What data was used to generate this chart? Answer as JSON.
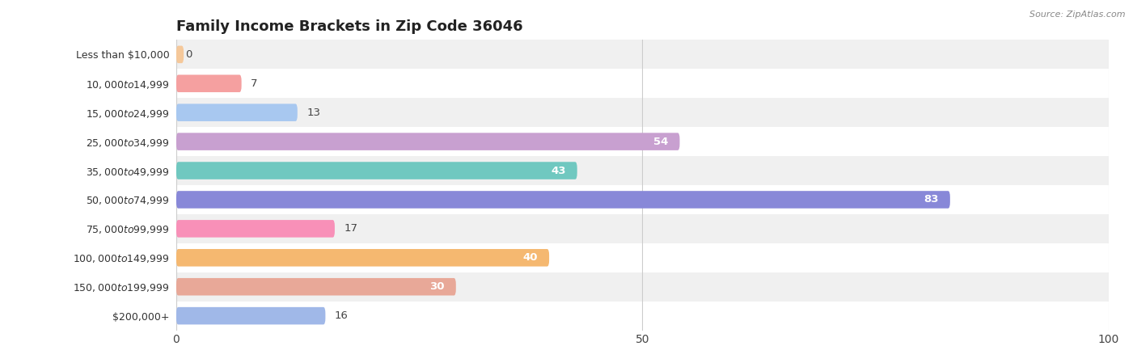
{
  "title": "Family Income Brackets in Zip Code 36046",
  "source": "Source: ZipAtlas.com",
  "categories": [
    "Less than $10,000",
    "$10,000 to $14,999",
    "$15,000 to $24,999",
    "$25,000 to $34,999",
    "$35,000 to $49,999",
    "$50,000 to $74,999",
    "$75,000 to $99,999",
    "$100,000 to $149,999",
    "$150,000 to $199,999",
    "$200,000+"
  ],
  "values": [
    0,
    7,
    13,
    54,
    43,
    83,
    17,
    40,
    30,
    16
  ],
  "colors": [
    "#f5c89a",
    "#f5a0a0",
    "#a8c8f0",
    "#c8a0d0",
    "#70c8c0",
    "#8888d8",
    "#f890b8",
    "#f5b870",
    "#e8a898",
    "#a0b8e8"
  ],
  "xlim": [
    0,
    100
  ],
  "label_inside_threshold": 25,
  "bg_colors": [
    "#f0f0f0",
    "#ffffff"
  ],
  "title_fontsize": 13,
  "tick_fontsize": 10,
  "bar_height": 0.6,
  "label_fontsize": 9.5,
  "cat_fontsize": 9,
  "figure_width": 14.06,
  "figure_height": 4.49
}
